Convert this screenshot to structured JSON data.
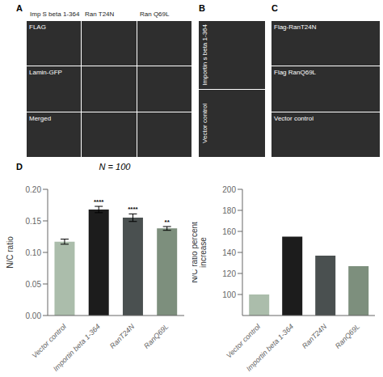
{
  "chart_data": [
    {
      "type": "bar",
      "title": "N = 100",
      "annotations": [
        "D",
        "A",
        "Imp S beta 1-364",
        "Ran T24N",
        "Ran Q69L",
        "FLAG",
        "Lamin-GFP",
        "Merged",
        "B",
        "Importin s beta 1-364",
        "Vector control",
        "C",
        "Flag-RanT24N",
        "Flag RanQ69L",
        "Vector control"
      ],
      "categories": [
        "Vector control",
        "Importin beta 1-364",
        "RanT24N",
        "RanQ69L"
      ],
      "values": [
        0.117,
        0.168,
        0.155,
        0.138
      ],
      "errors": [
        0.004,
        0.005,
        0.006,
        0.003
      ],
      "significance": [
        null,
        "****",
        "****",
        "**"
      ],
      "colors": [
        "#abbdab",
        "#1c1c1c",
        "#4a5050",
        "#7d8f7d"
      ],
      "ylabel": "N/C ratio",
      "ylim": [
        0.0,
        0.2
      ],
      "yticks": [
        {
          "value": 0.0,
          "label": "0.00"
        },
        {
          "value": 0.05,
          "label": "0.05"
        },
        {
          "value": 0.1,
          "label": "0.10"
        },
        {
          "value": 0.15,
          "label": "0.15"
        },
        {
          "value": 0.2,
          "label": "0.20"
        }
      ]
    },
    {
      "type": "bar",
      "categories": [
        "Vector control",
        "Importin beta 1-364",
        "RanT24N",
        "RanQ69L"
      ],
      "values": [
        100,
        155,
        137,
        127
      ],
      "colors": [
        "#abbdab",
        "#1c1c1c",
        "#4a5050",
        "#7d8f7d"
      ],
      "ylabel": "N/C ratio percent\nincrease",
      "ylim": [
        80,
        200
      ],
      "yticks": [
        100,
        120,
        140,
        160,
        180,
        200
      ]
    }
  ]
}
